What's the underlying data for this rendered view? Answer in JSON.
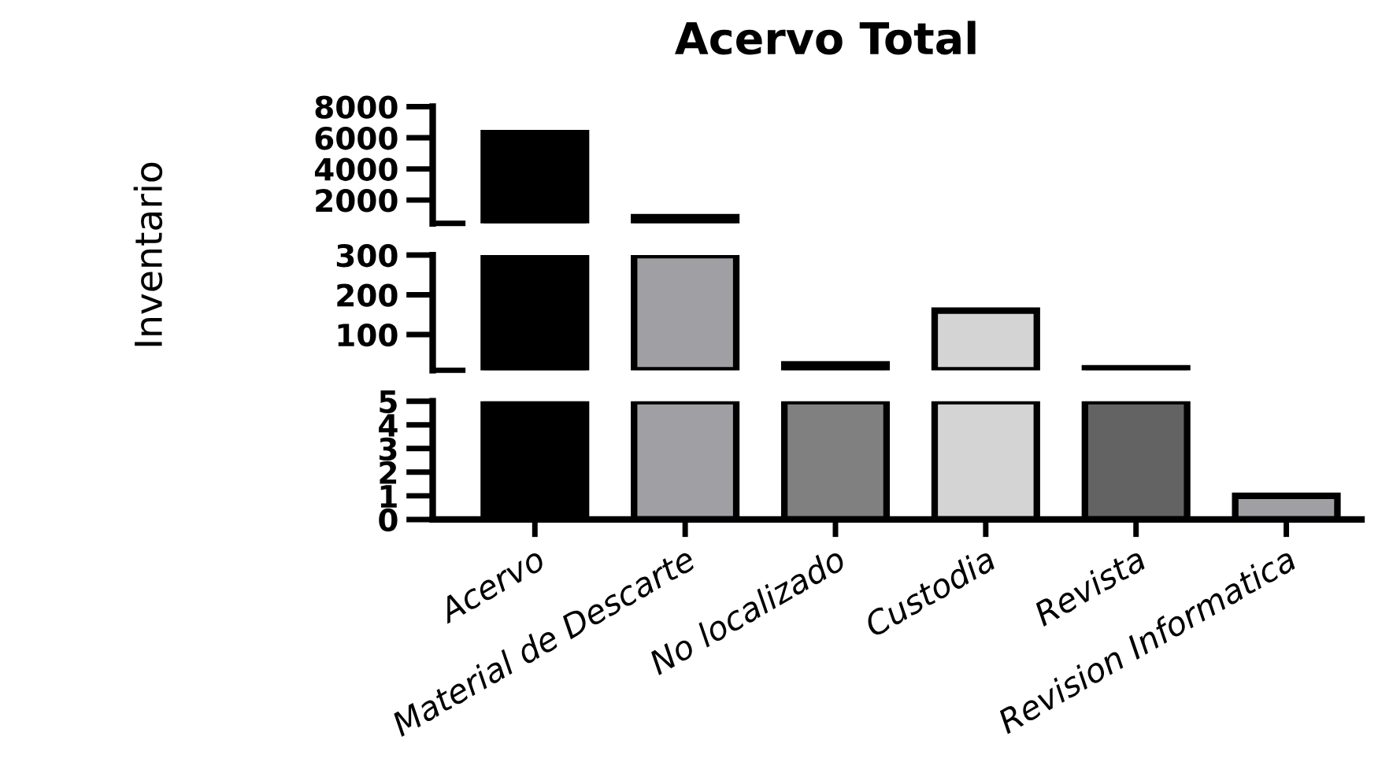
{
  "chart_data": [
    {
      "type": "bar",
      "title": "Acervo Total",
      "categories": [
        null,
        null,
        null,
        null,
        null,
        null
      ],
      "values": [
        6300,
        900,
        null,
        null,
        null,
        null
      ],
      "colors": [
        "#000000",
        "#a0a0a4",
        "#808080",
        "#d4d4d4",
        "#636363",
        "#a0a0a4"
      ],
      "ylim": [
        500,
        8000
      ],
      "yticks": [
        2000,
        4000,
        6000,
        8000
      ],
      "tick_labels": "y"
    },
    {
      "type": "bar",
      "ylabel": "Inventario",
      "categories": [
        null,
        null,
        null,
        null,
        null,
        null
      ],
      "values": [
        300,
        300,
        25,
        160,
        15,
        null
      ],
      "colors": [
        "#000000",
        "#a0a0a4",
        "#808080",
        "#d4d4d4",
        "#636363",
        "#a0a0a4"
      ],
      "ylim": [
        10,
        300
      ],
      "yticks": [
        100,
        200,
        300
      ],
      "tick_labels": "y"
    },
    {
      "type": "bar",
      "categories": [
        "Acervo",
        "Material de Descarte",
        "No localizado",
        "Custodia",
        "Revista",
        "Revision Informatica"
      ],
      "values": [
        5,
        5,
        5,
        5,
        5,
        1
      ],
      "colors": [
        "#000000",
        "#a0a0a4",
        "#808080",
        "#d4d4d4",
        "#636363",
        "#a0a0a4"
      ],
      "ylim": [
        0,
        5
      ],
      "yticks": [
        0,
        1,
        2,
        3,
        4,
        5
      ]
    }
  ]
}
